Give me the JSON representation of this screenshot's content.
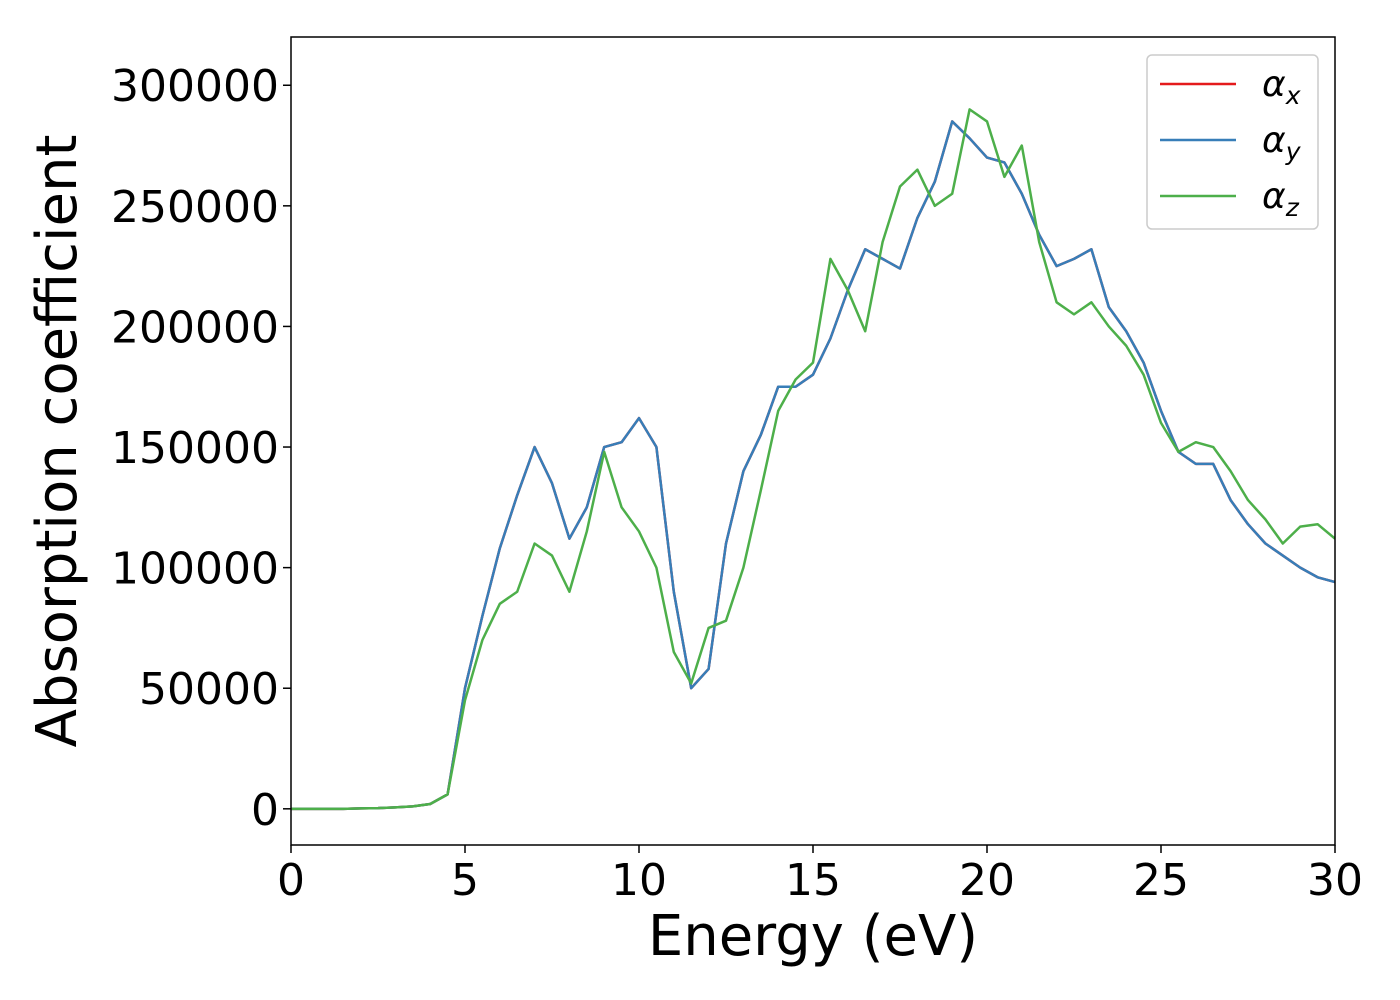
{
  "chart_data": {
    "type": "line",
    "xlabel": "Energy (eV)",
    "ylabel": "Absorption coefficient",
    "x": [
      0,
      0.5,
      1,
      1.5,
      2,
      2.5,
      3,
      3.5,
      4,
      4.5,
      5,
      5.5,
      6,
      6.5,
      7,
      7.5,
      8,
      8.5,
      9,
      9.5,
      10,
      10.5,
      11,
      11.5,
      12,
      12.5,
      13,
      13.5,
      14,
      14.5,
      15,
      15.5,
      16,
      16.5,
      17,
      17.5,
      18,
      18.5,
      19,
      19.5,
      20,
      20.5,
      21,
      21.5,
      22,
      22.5,
      23,
      23.5,
      24,
      24.5,
      25,
      25.5,
      26,
      26.5,
      27,
      27.5,
      28,
      28.5,
      29,
      29.5,
      30
    ],
    "series": [
      {
        "name": "αx",
        "color": "#e41a1c",
        "values": [
          0,
          0,
          0,
          0,
          200,
          300,
          600,
          1000,
          2000,
          6000,
          50000,
          80000,
          108000,
          130000,
          150000,
          135000,
          112000,
          125000,
          150000,
          152000,
          162000,
          150000,
          90000,
          50000,
          58000,
          110000,
          140000,
          155000,
          175000,
          175000,
          180000,
          195000,
          215000,
          232000,
          228000,
          224000,
          245000,
          260000,
          285000,
          278000,
          270000,
          268000,
          255000,
          238000,
          225000,
          228000,
          232000,
          208000,
          198000,
          185000,
          165000,
          148000,
          143000,
          143000,
          128000,
          118000,
          110000,
          105000,
          100000,
          96000,
          94000
        ]
      },
      {
        "name": "αy",
        "color": "#377eb8",
        "values": [
          0,
          0,
          0,
          0,
          200,
          300,
          600,
          1000,
          2000,
          6000,
          50000,
          80000,
          108000,
          130000,
          150000,
          135000,
          112000,
          125000,
          150000,
          152000,
          162000,
          150000,
          90000,
          50000,
          58000,
          110000,
          140000,
          155000,
          175000,
          175000,
          180000,
          195000,
          215000,
          232000,
          228000,
          224000,
          245000,
          260000,
          285000,
          278000,
          270000,
          268000,
          255000,
          238000,
          225000,
          228000,
          232000,
          208000,
          198000,
          185000,
          165000,
          148000,
          143000,
          143000,
          128000,
          118000,
          110000,
          105000,
          100000,
          96000,
          94000
        ]
      },
      {
        "name": "αz",
        "color": "#4daf4a",
        "values": [
          0,
          0,
          0,
          0,
          200,
          300,
          600,
          1000,
          2000,
          6000,
          45000,
          70000,
          85000,
          90000,
          110000,
          105000,
          90000,
          115000,
          148000,
          125000,
          115000,
          100000,
          65000,
          52000,
          75000,
          78000,
          100000,
          132000,
          165000,
          178000,
          185000,
          228000,
          215000,
          198000,
          235000,
          258000,
          265000,
          250000,
          255000,
          290000,
          285000,
          262000,
          275000,
          235000,
          210000,
          205000,
          210000,
          200000,
          192000,
          180000,
          160000,
          148000,
          152000,
          150000,
          140000,
          128000,
          120000,
          110000,
          117000,
          118000,
          112000
        ]
      }
    ],
    "xlim": [
      0,
      30
    ],
    "xticks": [
      0,
      5,
      10,
      15,
      20,
      25,
      30
    ],
    "ylim": [
      -15000,
      320000
    ],
    "yticks": [
      0,
      50000,
      100000,
      150000,
      200000,
      250000,
      300000
    ],
    "legend": "upper right",
    "grid": false
  }
}
